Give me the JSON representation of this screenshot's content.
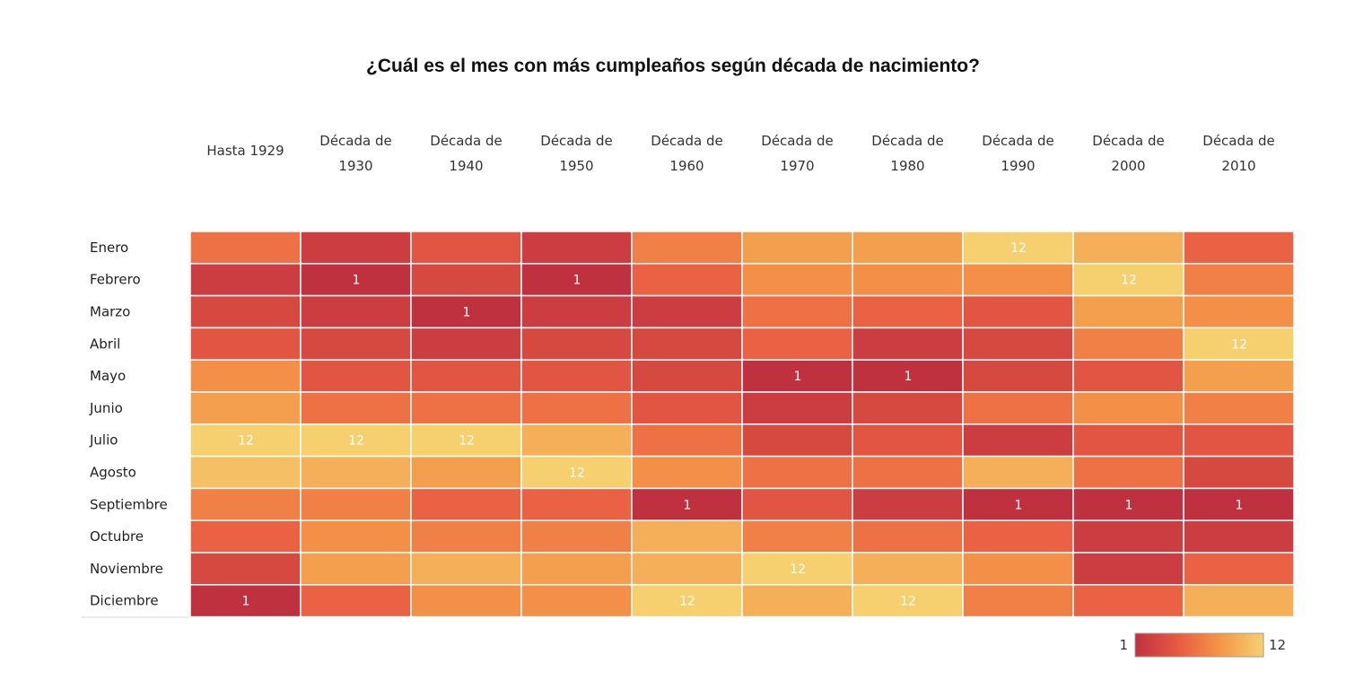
{
  "title": "¿Cuál es el mes con más cumpleaños según década de nacimiento?",
  "chart_data": {
    "type": "heatmap",
    "title": "¿Cuál es el mes con más cumpleaños según década de nacimiento?",
    "columns": [
      [
        "Hasta 1929"
      ],
      [
        "Década de",
        "1930"
      ],
      [
        "Década de",
        "1940"
      ],
      [
        "Década de",
        "1950"
      ],
      [
        "Década de",
        "1960"
      ],
      [
        "Década de",
        "1970"
      ],
      [
        "Década de",
        "1980"
      ],
      [
        "Década de",
        "1990"
      ],
      [
        "Década de",
        "2000"
      ],
      [
        "Década de",
        "2010"
      ]
    ],
    "rows": [
      "Enero",
      "Febrero",
      "Marzo",
      "Abril",
      "Mayo",
      "Junio",
      "Julio",
      "Agosto",
      "Septiembre",
      "Octubre",
      "Noviembre",
      "Diciembre"
    ],
    "values": [
      [
        6,
        2,
        4,
        2,
        7,
        9,
        9,
        12,
        10,
        5
      ],
      [
        2,
        1,
        3,
        1,
        5,
        8,
        8,
        8,
        12,
        7
      ],
      [
        3,
        2,
        1,
        2,
        2,
        6,
        5,
        4,
        9,
        8
      ],
      [
        4,
        3,
        2,
        3,
        3,
        5,
        2,
        3,
        7,
        12
      ],
      [
        8,
        4,
        4,
        4,
        3,
        1,
        1,
        3,
        4,
        9
      ],
      [
        9,
        6,
        6,
        6,
        4,
        2,
        3,
        6,
        8,
        7
      ],
      [
        12,
        12,
        12,
        10,
        6,
        3,
        4,
        2,
        4,
        4
      ],
      [
        11,
        10,
        9,
        12,
        8,
        6,
        6,
        10,
        6,
        3
      ],
      [
        7,
        7,
        5,
        5,
        1,
        4,
        2,
        1,
        1,
        1
      ],
      [
        5,
        8,
        7,
        7,
        10,
        7,
        6,
        5,
        2,
        2
      ],
      [
        3,
        9,
        10,
        9,
        10,
        12,
        10,
        8,
        2,
        5
      ],
      [
        1,
        5,
        8,
        8,
        12,
        10,
        12,
        7,
        5,
        10
      ]
    ],
    "labeled_values": [
      1,
      12
    ],
    "legend": {
      "min": 1,
      "max": 12,
      "placement": "bottom-right"
    },
    "color_scale": [
      "#c0313f",
      "#e95d43",
      "#f49447",
      "#f6d06f"
    ]
  }
}
